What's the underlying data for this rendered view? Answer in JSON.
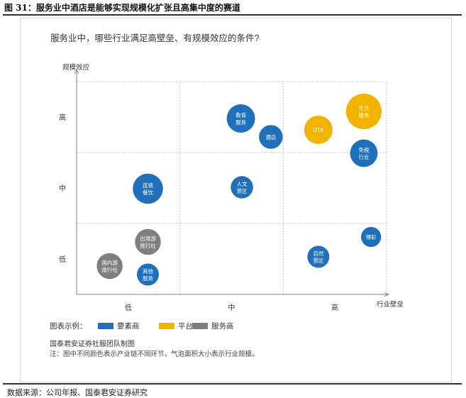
{
  "figure_title": "图 31：服务业中酒店是能够实现规模化扩张且高集中度的赛道",
  "source_note": "数据来源：公司年报、国泰君安证券研究",
  "legend_prefix": "图表示例：",
  "credit": "国泰君安证券社服团队制图",
  "footnote": "注：图中不同颜色表示产业链不同环节，气泡面积大小表示行业规模。",
  "colors": {
    "要素商": "#1f6fba",
    "平台": "#f2b300",
    "服务商": "#7f7f7f",
    "grid": "#bfbfbf",
    "axis": "#7f7f7f"
  },
  "chart_data": {
    "type": "scatter",
    "title": "服务业中，哪些行业满足高壁垒、有规模效应的条件?",
    "xlabel": "行业壁垒",
    "ylabel": "规模效应",
    "x_ticks": [
      "低",
      "中",
      "高"
    ],
    "y_ticks": [
      "低",
      "中",
      "高"
    ],
    "xlim": [
      0,
      3
    ],
    "ylim": [
      0,
      3
    ],
    "grid": true,
    "legend_position": "bottom-left",
    "series": [
      {
        "name": "要素商",
        "color": "#1f6fba"
      },
      {
        "name": "平台",
        "color": "#f2b300"
      },
      {
        "name": "服务商",
        "color": "#7f7f7f"
      }
    ],
    "points": [
      {
        "label": [
          "教育",
          "服务"
        ],
        "series": "要素商",
        "x": 1.59,
        "y": 2.48,
        "size": 1.0
      },
      {
        "label": [
          "酒店"
        ],
        "series": "要素商",
        "x": 1.88,
        "y": 2.22,
        "size": 0.7
      },
      {
        "label": [
          "生活",
          "服务"
        ],
        "series": "平台",
        "x": 2.78,
        "y": 2.58,
        "size": 1.57
      },
      {
        "label": [
          "OTA"
        ],
        "series": "平台",
        "x": 2.34,
        "y": 2.32,
        "size": 1.0
      },
      {
        "label": [
          "免税",
          "行业"
        ],
        "series": "要素商",
        "x": 2.78,
        "y": 1.99,
        "size": 0.94
      },
      {
        "label": [
          "人文",
          "景区"
        ],
        "series": "要素商",
        "x": 1.6,
        "y": 1.51,
        "size": 0.62
      },
      {
        "label": [
          "连锁",
          "餐饮"
        ],
        "series": "要素商",
        "x": 0.69,
        "y": 1.49,
        "size": 1.13
      },
      {
        "label": [
          "出境游",
          "旅行社"
        ],
        "series": "服务商",
        "x": 0.69,
        "y": 0.74,
        "size": 0.83
      },
      {
        "label": [
          "国内游",
          "旅行社"
        ],
        "series": "服务商",
        "x": 0.32,
        "y": 0.4,
        "size": 0.83
      },
      {
        "label": [
          "其他",
          "服务"
        ],
        "series": "要素商",
        "x": 0.69,
        "y": 0.28,
        "size": 0.6
      },
      {
        "label": [
          "博彩"
        ],
        "series": "要素商",
        "x": 2.85,
        "y": 0.81,
        "size": 0.5
      },
      {
        "label": [
          "自然",
          "景区"
        ],
        "series": "要素商",
        "x": 2.34,
        "y": 0.53,
        "size": 0.6
      }
    ]
  }
}
